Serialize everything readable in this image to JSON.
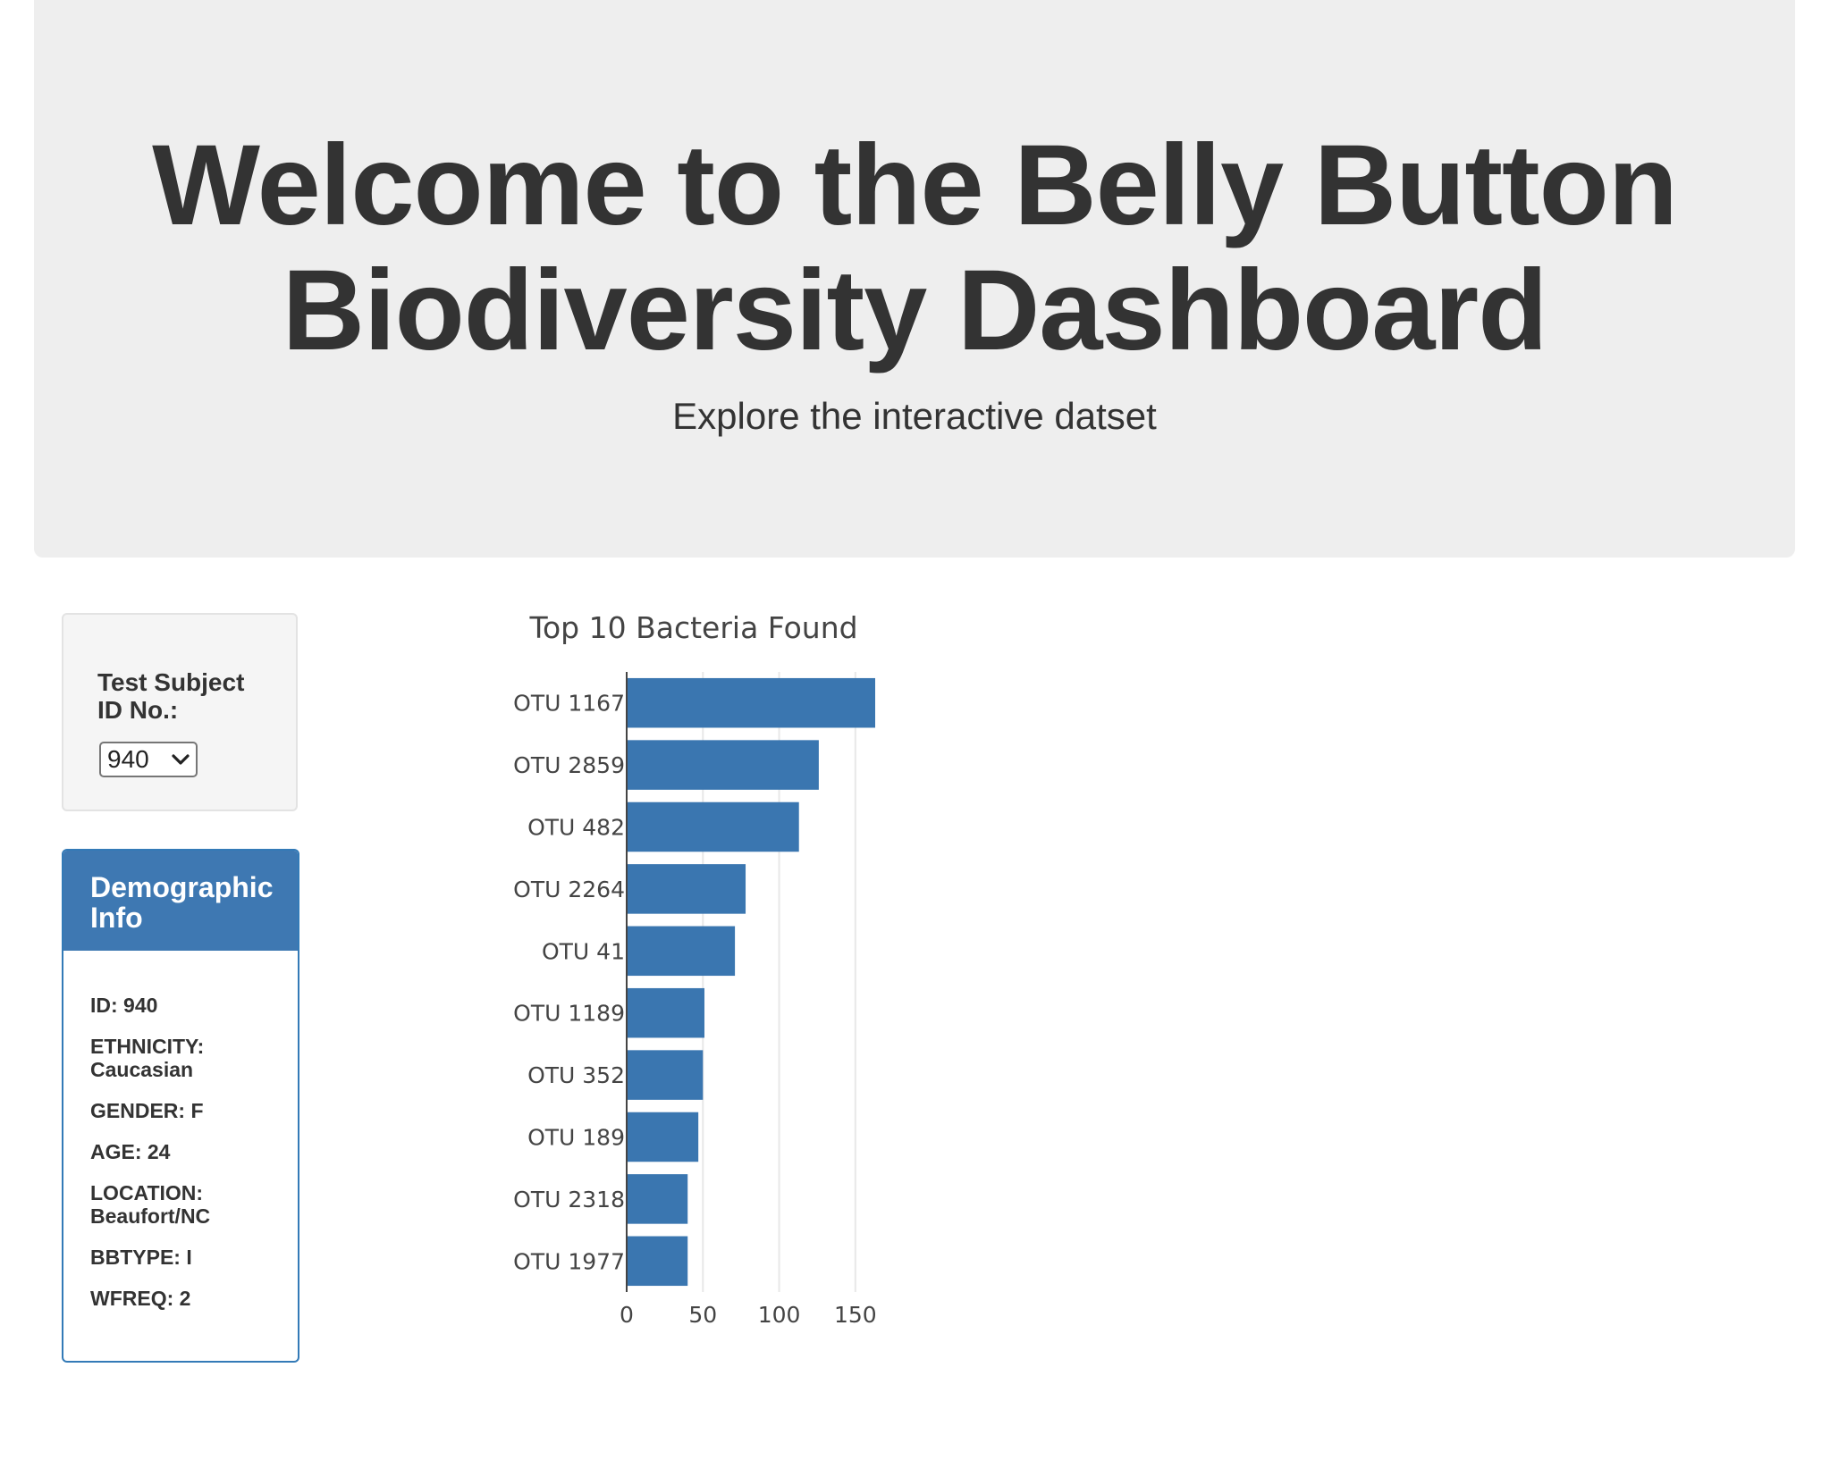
{
  "header": {
    "title_line1": "Welcome to the Belly Button",
    "title_line2": "Biodiversity Dashboard",
    "subtitle": "Explore the interactive datset"
  },
  "selector": {
    "label_line1": "Test Subject",
    "label_line2": "ID No.:",
    "selected_value": "940"
  },
  "demographic": {
    "title_line1": "Demographic",
    "title_line2": "Info",
    "items": [
      [
        "ID: 940"
      ],
      [
        "ETHNICITY:",
        "Caucasian"
      ],
      [
        "GENDER: F"
      ],
      [
        "AGE: 24"
      ],
      [
        "LOCATION:",
        "Beaufort/NC"
      ],
      [
        "BBTYPE: I"
      ],
      [
        "WFREQ: 2"
      ]
    ]
  },
  "colors": {
    "bar": "#3a76b0",
    "panel_heading": "#3e78b2",
    "jumbotron": "#eeeeee"
  },
  "chart_data": {
    "type": "bar",
    "orientation": "horizontal",
    "title": "Top 10 Bacteria Found",
    "categories": [
      "OTU 1167",
      "OTU 2859",
      "OTU 482",
      "OTU 2264",
      "OTU 41",
      "OTU 1189",
      "OTU 352",
      "OTU 189",
      "OTU 2318",
      "OTU 1977"
    ],
    "values": [
      163,
      126,
      113,
      78,
      71,
      51,
      50,
      47,
      40,
      40
    ],
    "xticks": [
      0,
      50,
      100,
      150
    ],
    "xlim": [
      0,
      163
    ],
    "grid": true
  }
}
